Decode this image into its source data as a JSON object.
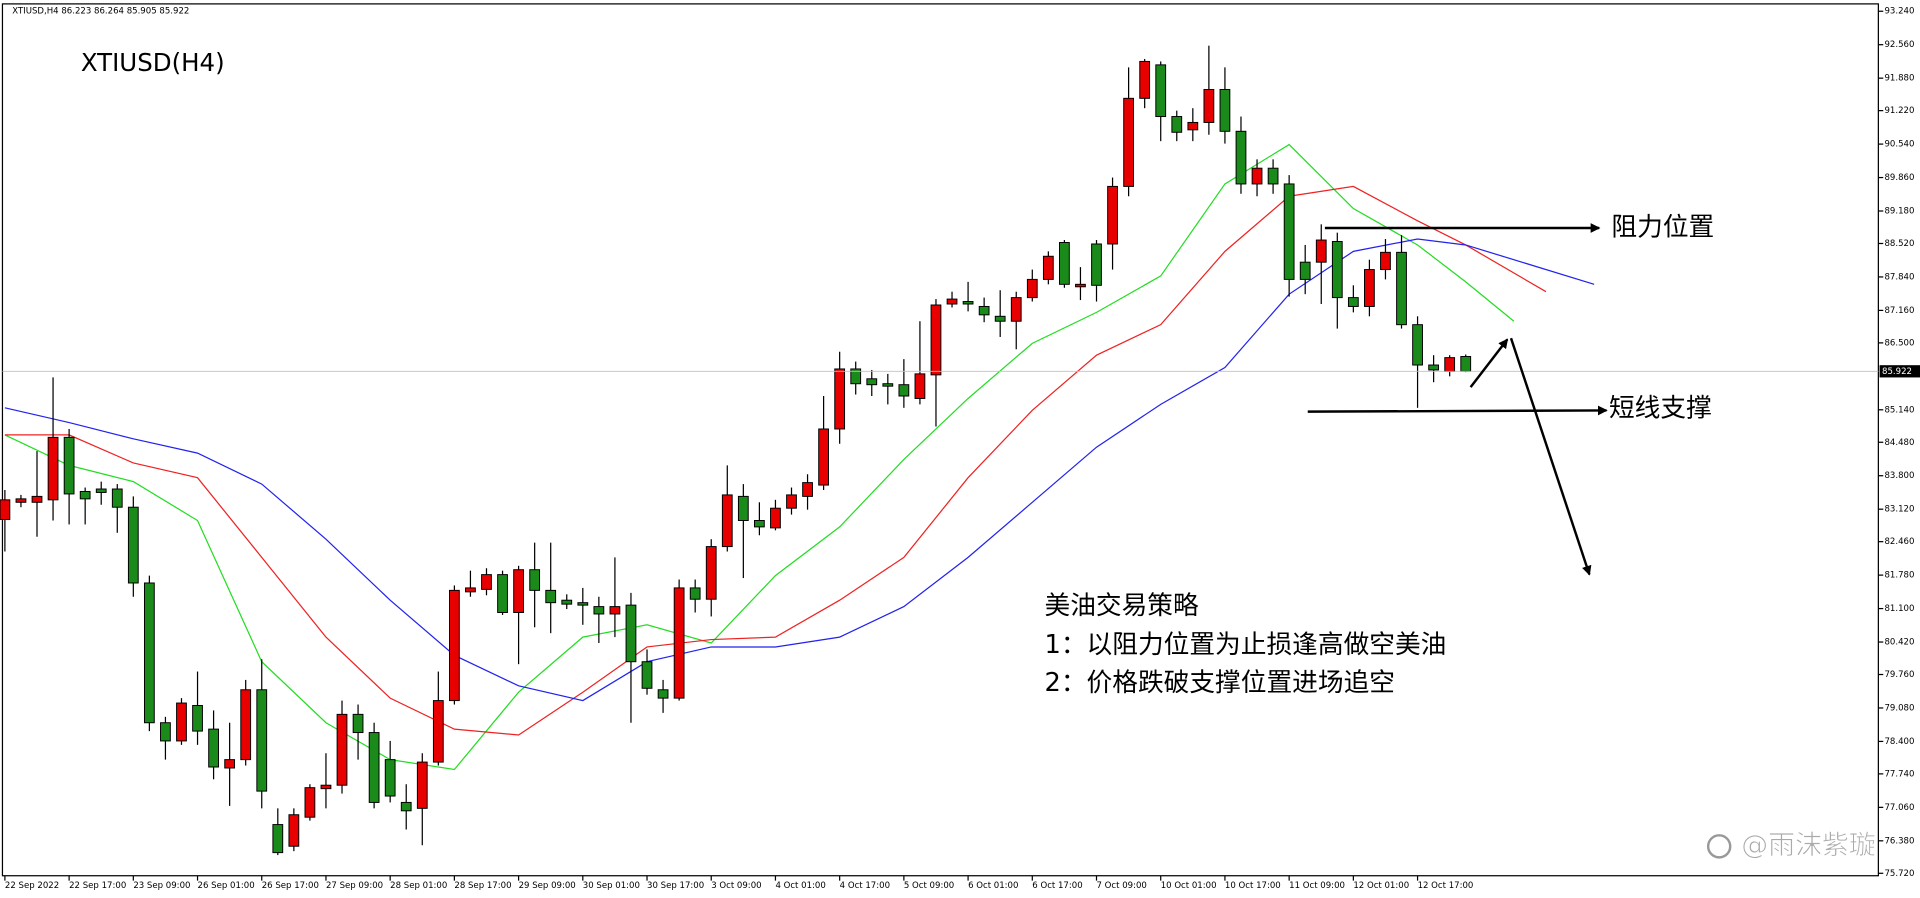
{
  "chart_data": {
    "type": "candlestick",
    "header": "XTIUSD,H4  86.223 86.264 85.905 85.922",
    "title": "XTIUSD(H4)",
    "categories": [
      "22 Sep 2022",
      null,
      null,
      null,
      "22 Sep 17:00",
      null,
      null,
      null,
      "23 Sep 09:00",
      null,
      null,
      null,
      "26 Sep 01:00",
      null,
      null,
      null,
      "26 Sep 17:00",
      null,
      null,
      null,
      "27 Sep 09:00",
      null,
      null,
      null,
      "28 Sep 01:00",
      null,
      null,
      null,
      "28 Sep 17:00",
      null,
      null,
      null,
      "29 Sep 09:00",
      null,
      null,
      null,
      "30 Sep 01:00",
      null,
      null,
      null,
      "30 Sep 17:00",
      null,
      null,
      null,
      "3 Oct 09:00",
      null,
      null,
      null,
      "4 Oct 01:00",
      null,
      null,
      null,
      "4 Oct 17:00",
      null,
      null,
      null,
      "5 Oct 09:00",
      null,
      null,
      null,
      "6 Oct 01:00",
      null,
      null,
      null,
      "6 Oct 17:00",
      null,
      null,
      null,
      "7 Oct 09:00",
      null,
      null,
      null,
      "10 Oct 01:00",
      null,
      null,
      null,
      "10 Oct 17:00",
      null,
      null,
      null,
      "11 Oct 09:00",
      null,
      null,
      null,
      "12 Oct 01:00",
      null,
      null,
      null,
      "12 Oct 17:00",
      null,
      null,
      null
    ],
    "open": [
      82.91,
      83.26,
      83.26,
      83.31,
      84.58,
      83.48,
      83.53,
      83.53,
      83.16,
      81.62,
      78.78,
      78.41,
      79.13,
      78.65,
      77.86,
      78.03,
      79.45,
      76.71,
      76.27,
      76.86,
      77.44,
      77.51,
      78.95,
      78.58,
      78.03,
      77.16,
      77.04,
      77.98,
      79.23,
      81.44,
      81.49,
      81.79,
      81.02,
      81.89,
      81.47,
      81.27,
      81.22,
      81.14,
      80.99,
      81.17,
      80.02,
      79.45,
      79.28,
      81.52,
      81.29,
      82.36,
      83.38,
      82.89,
      82.74,
      83.14,
      83.38,
      83.61,
      84.75,
      85.97,
      85.77,
      85.67,
      85.65,
      85.37,
      85.85,
      87.29,
      87.34,
      87.24,
      87.04,
      86.94,
      87.42,
      87.79,
      88.54,
      87.64,
      88.51,
      88.51,
      89.68,
      91.47,
      92.15,
      91.1,
      90.83,
      90.98,
      91.65,
      90.8,
      89.73,
      90.05,
      89.73,
      88.14,
      88.14,
      88.56,
      87.42,
      87.24,
      87.99,
      88.34,
      86.87,
      86.05,
      85.92,
      86.223
    ],
    "high": [
      83.51,
      83.41,
      84.3,
      85.8,
      84.75,
      83.56,
      83.68,
      83.63,
      83.38,
      81.77,
      78.9,
      79.28,
      79.82,
      79.03,
      78.78,
      79.65,
      80.07,
      77.04,
      77.04,
      77.53,
      78.16,
      79.23,
      79.15,
      78.78,
      78.41,
      77.53,
      78.16,
      79.82,
      81.57,
      81.87,
      81.92,
      81.87,
      81.97,
      82.44,
      82.44,
      81.39,
      81.52,
      81.34,
      82.14,
      81.42,
      80.27,
      79.65,
      81.69,
      81.69,
      82.51,
      84.01,
      83.63,
      83.26,
      83.31,
      83.56,
      83.83,
      85.42,
      86.32,
      86.12,
      85.95,
      85.87,
      86.17,
      86.94,
      87.39,
      87.54,
      87.74,
      87.42,
      87.57,
      87.54,
      87.99,
      88.36,
      88.59,
      88.04,
      88.59,
      89.86,
      92.1,
      92.27,
      92.22,
      91.22,
      91.27,
      92.54,
      92.1,
      91.1,
      90.23,
      90.23,
      89.91,
      88.49,
      88.91,
      88.74,
      87.67,
      88.19,
      88.61,
      88.69,
      87.04,
      86.25,
      86.25,
      86.264
    ],
    "low": [
      82.26,
      83.16,
      82.56,
      82.89,
      82.81,
      82.81,
      83.21,
      82.64,
      81.34,
      78.61,
      78.03,
      78.33,
      78.33,
      77.63,
      77.09,
      77.91,
      77.04,
      76.09,
      76.17,
      76.79,
      77.04,
      77.34,
      78.03,
      77.04,
      77.16,
      76.61,
      76.29,
      77.91,
      79.15,
      81.34,
      81.37,
      80.97,
      79.97,
      80.72,
      80.6,
      81.09,
      80.77,
      80.4,
      80.52,
      78.78,
      79.35,
      78.98,
      79.23,
      81.02,
      80.94,
      82.26,
      81.72,
      82.59,
      82.69,
      83.01,
      83.11,
      83.51,
      84.45,
      85.45,
      85.42,
      85.25,
      85.18,
      85.25,
      84.8,
      87.22,
      87.14,
      86.92,
      86.62,
      86.37,
      87.34,
      87.69,
      87.62,
      87.37,
      87.34,
      87.99,
      89.48,
      91.27,
      90.6,
      90.6,
      90.6,
      90.73,
      90.55,
      89.53,
      89.48,
      89.53,
      87.44,
      87.49,
      87.29,
      86.79,
      87.12,
      87.04,
      87.79,
      86.79,
      85.18,
      85.7,
      85.82,
      85.905
    ],
    "close": [
      83.31,
      83.33,
      83.38,
      84.58,
      83.43,
      83.33,
      83.46,
      83.16,
      81.62,
      78.78,
      78.41,
      79.18,
      78.61,
      77.88,
      78.03,
      79.45,
      77.39,
      76.14,
      76.91,
      77.46,
      77.51,
      78.95,
      78.58,
      77.16,
      77.29,
      76.99,
      77.98,
      79.23,
      81.47,
      81.52,
      81.79,
      81.02,
      81.89,
      81.47,
      81.22,
      81.19,
      81.17,
      80.99,
      81.14,
      80.02,
      79.48,
      79.28,
      81.52,
      81.29,
      82.36,
      83.41,
      82.89,
      82.76,
      83.14,
      83.41,
      83.66,
      84.75,
      85.97,
      85.67,
      85.65,
      85.62,
      85.42,
      85.87,
      87.27,
      87.39,
      87.29,
      87.07,
      86.94,
      87.42,
      87.79,
      88.26,
      87.69,
      87.69,
      87.67,
      89.68,
      91.47,
      92.22,
      91.1,
      90.78,
      90.98,
      91.65,
      90.8,
      89.73,
      90.05,
      89.73,
      87.79,
      87.79,
      88.59,
      87.42,
      87.24,
      87.99,
      88.34,
      86.87,
      86.05,
      85.95,
      86.2,
      85.922
    ],
    "up_color": "#e80000",
    "down_color": "#1a8a1a",
    "ylim": [
      75.72,
      93.24
    ],
    "yticks": [
      {
        "value": 93.24,
        "label": "93.240"
      },
      {
        "value": 92.56,
        "label": "92.560"
      },
      {
        "value": 91.88,
        "label": "91.880"
      },
      {
        "value": 91.22,
        "label": "91.220"
      },
      {
        "value": 90.54,
        "label": "90.540"
      },
      {
        "value": 89.86,
        "label": "89.860"
      },
      {
        "value": 89.18,
        "label": "89.180"
      },
      {
        "value": 88.52,
        "label": "88.520"
      },
      {
        "value": 87.84,
        "label": "87.840"
      },
      {
        "value": 87.16,
        "label": "87.160"
      },
      {
        "value": 86.5,
        "label": "86.500"
      },
      {
        "value": 85.14,
        "label": "85.140"
      },
      {
        "value": 84.48,
        "label": "84.480"
      },
      {
        "value": 83.8,
        "label": "83.800"
      },
      {
        "value": 83.12,
        "label": "83.120"
      },
      {
        "value": 82.46,
        "label": "82.460"
      },
      {
        "value": 81.78,
        "label": "81.780"
      },
      {
        "value": 81.1,
        "label": "81.100"
      },
      {
        "value": 80.42,
        "label": "80.420"
      },
      {
        "value": 79.76,
        "label": "79.760"
      },
      {
        "value": 79.08,
        "label": "79.080"
      },
      {
        "value": 78.4,
        "label": "78.400"
      },
      {
        "value": 77.74,
        "label": "77.740"
      },
      {
        "value": 77.06,
        "label": "77.060"
      },
      {
        "value": 76.38,
        "label": "76.380"
      },
      {
        "value": 75.72,
        "label": "75.720"
      }
    ],
    "current_price": {
      "value": 85.922,
      "label": "85.922"
    },
    "moving_averages": [
      {
        "color": "#22dd22",
        "x": [
          0,
          4,
          8,
          12,
          16,
          20,
          24,
          28,
          32,
          36,
          40,
          44,
          48,
          52,
          56,
          60,
          64,
          68,
          72,
          76,
          80,
          84,
          88,
          91,
          94
        ],
        "values": [
          84.63,
          84.01,
          83.68,
          82.89,
          80.02,
          78.78,
          78.03,
          77.83,
          79.4,
          80.52,
          80.77,
          80.4,
          81.77,
          82.76,
          84.13,
          85.37,
          86.49,
          87.12,
          87.86,
          89.73,
          90.53,
          89.23,
          88.49,
          87.74,
          86.94
        ]
      },
      {
        "color": "#ee2222",
        "x": [
          0,
          4,
          8,
          12,
          16,
          20,
          24,
          28,
          32,
          36,
          40,
          44,
          48,
          52,
          56,
          60,
          64,
          68,
          72,
          76,
          80,
          84,
          88,
          91,
          96
        ],
        "values": [
          84.63,
          84.63,
          84.06,
          83.76,
          82.14,
          80.52,
          79.28,
          78.65,
          78.53,
          79.4,
          80.32,
          80.47,
          80.52,
          81.27,
          82.14,
          83.76,
          85.13,
          86.25,
          86.87,
          88.36,
          89.48,
          89.68,
          88.98,
          88.49,
          87.54
        ]
      },
      {
        "color": "#2222ee",
        "x": [
          0,
          4,
          8,
          12,
          16,
          20,
          24,
          28,
          32,
          36,
          40,
          44,
          48,
          52,
          56,
          60,
          64,
          68,
          72,
          76,
          80,
          84,
          88,
          91,
          99
        ],
        "values": [
          85.18,
          84.88,
          84.55,
          84.26,
          83.63,
          82.51,
          81.27,
          80.15,
          79.53,
          79.23,
          80.02,
          80.32,
          80.32,
          80.52,
          81.14,
          82.14,
          83.26,
          84.38,
          85.25,
          86.0,
          87.49,
          88.36,
          88.61,
          88.49,
          87.69
        ]
      }
    ],
    "annotations": {
      "resistance": "阻力位置",
      "support": "短线支撑",
      "strategy": [
        "美油交易策略",
        "1：以阻力位置为止损逢高做空美油",
        "2：价格跌破支撑位置进场追空"
      ]
    },
    "watermark": "@雨沫紫璇"
  }
}
